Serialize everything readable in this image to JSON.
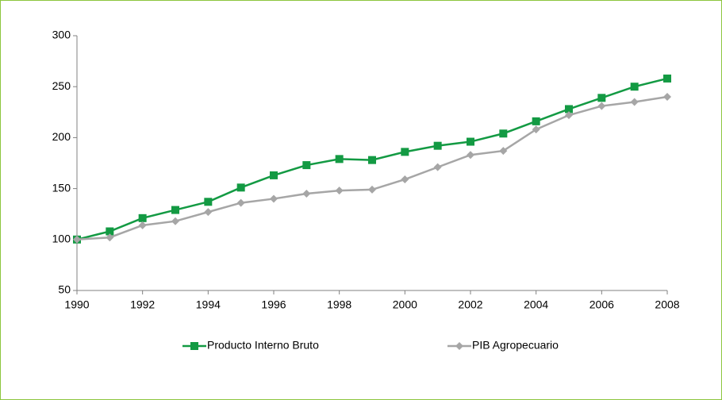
{
  "chart_data": {
    "type": "line",
    "x": [
      1990,
      1991,
      1992,
      1993,
      1994,
      1995,
      1996,
      1997,
      1998,
      1999,
      2000,
      2001,
      2002,
      2003,
      2004,
      2005,
      2006,
      2007,
      2008
    ],
    "series": [
      {
        "name": "Producto Interno Bruto",
        "color": "#139a43",
        "marker": "square",
        "values": [
          100,
          108,
          121,
          129,
          137,
          151,
          163,
          173,
          179,
          178,
          186,
          192,
          196,
          204,
          216,
          228,
          239,
          250,
          258
        ]
      },
      {
        "name": "PIB Agropecuario",
        "color": "#a6a6a6",
        "marker": "diamond",
        "values": [
          100,
          102,
          114,
          118,
          127,
          136,
          140,
          145,
          148,
          149,
          159,
          171,
          183,
          187,
          208,
          222,
          231,
          235,
          240
        ]
      }
    ],
    "xlim": [
      1990,
      2008
    ],
    "xticks": [
      1990,
      1992,
      1994,
      1996,
      1998,
      2000,
      2002,
      2004,
      2006,
      2008
    ],
    "ylim": [
      50,
      300
    ],
    "yticks": [
      50,
      100,
      150,
      200,
      250,
      300
    ],
    "legend": "bottom"
  }
}
